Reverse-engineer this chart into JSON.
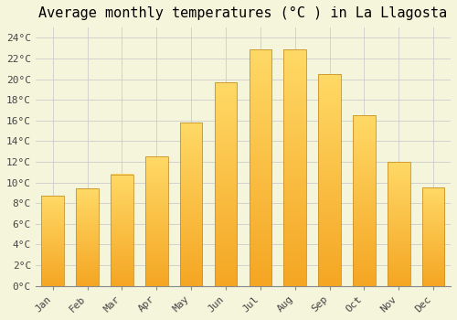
{
  "title": "Average monthly temperatures (°C ) in La Llagosta",
  "months": [
    "Jan",
    "Feb",
    "Mar",
    "Apr",
    "May",
    "Jun",
    "Jul",
    "Aug",
    "Sep",
    "Oct",
    "Nov",
    "Dec"
  ],
  "values": [
    8.7,
    9.4,
    10.8,
    12.5,
    15.8,
    19.7,
    22.9,
    22.9,
    20.5,
    16.5,
    12.0,
    9.5
  ],
  "bar_color_bottom": "#F5A623",
  "bar_color_top": "#FFD966",
  "bar_edge_color": "#C8922A",
  "background_color": "#F5F5DC",
  "grid_color": "#CCCCCC",
  "ylim": [
    0,
    25
  ],
  "ytick_step": 2,
  "title_fontsize": 11,
  "tick_fontsize": 8,
  "font_family": "monospace"
}
